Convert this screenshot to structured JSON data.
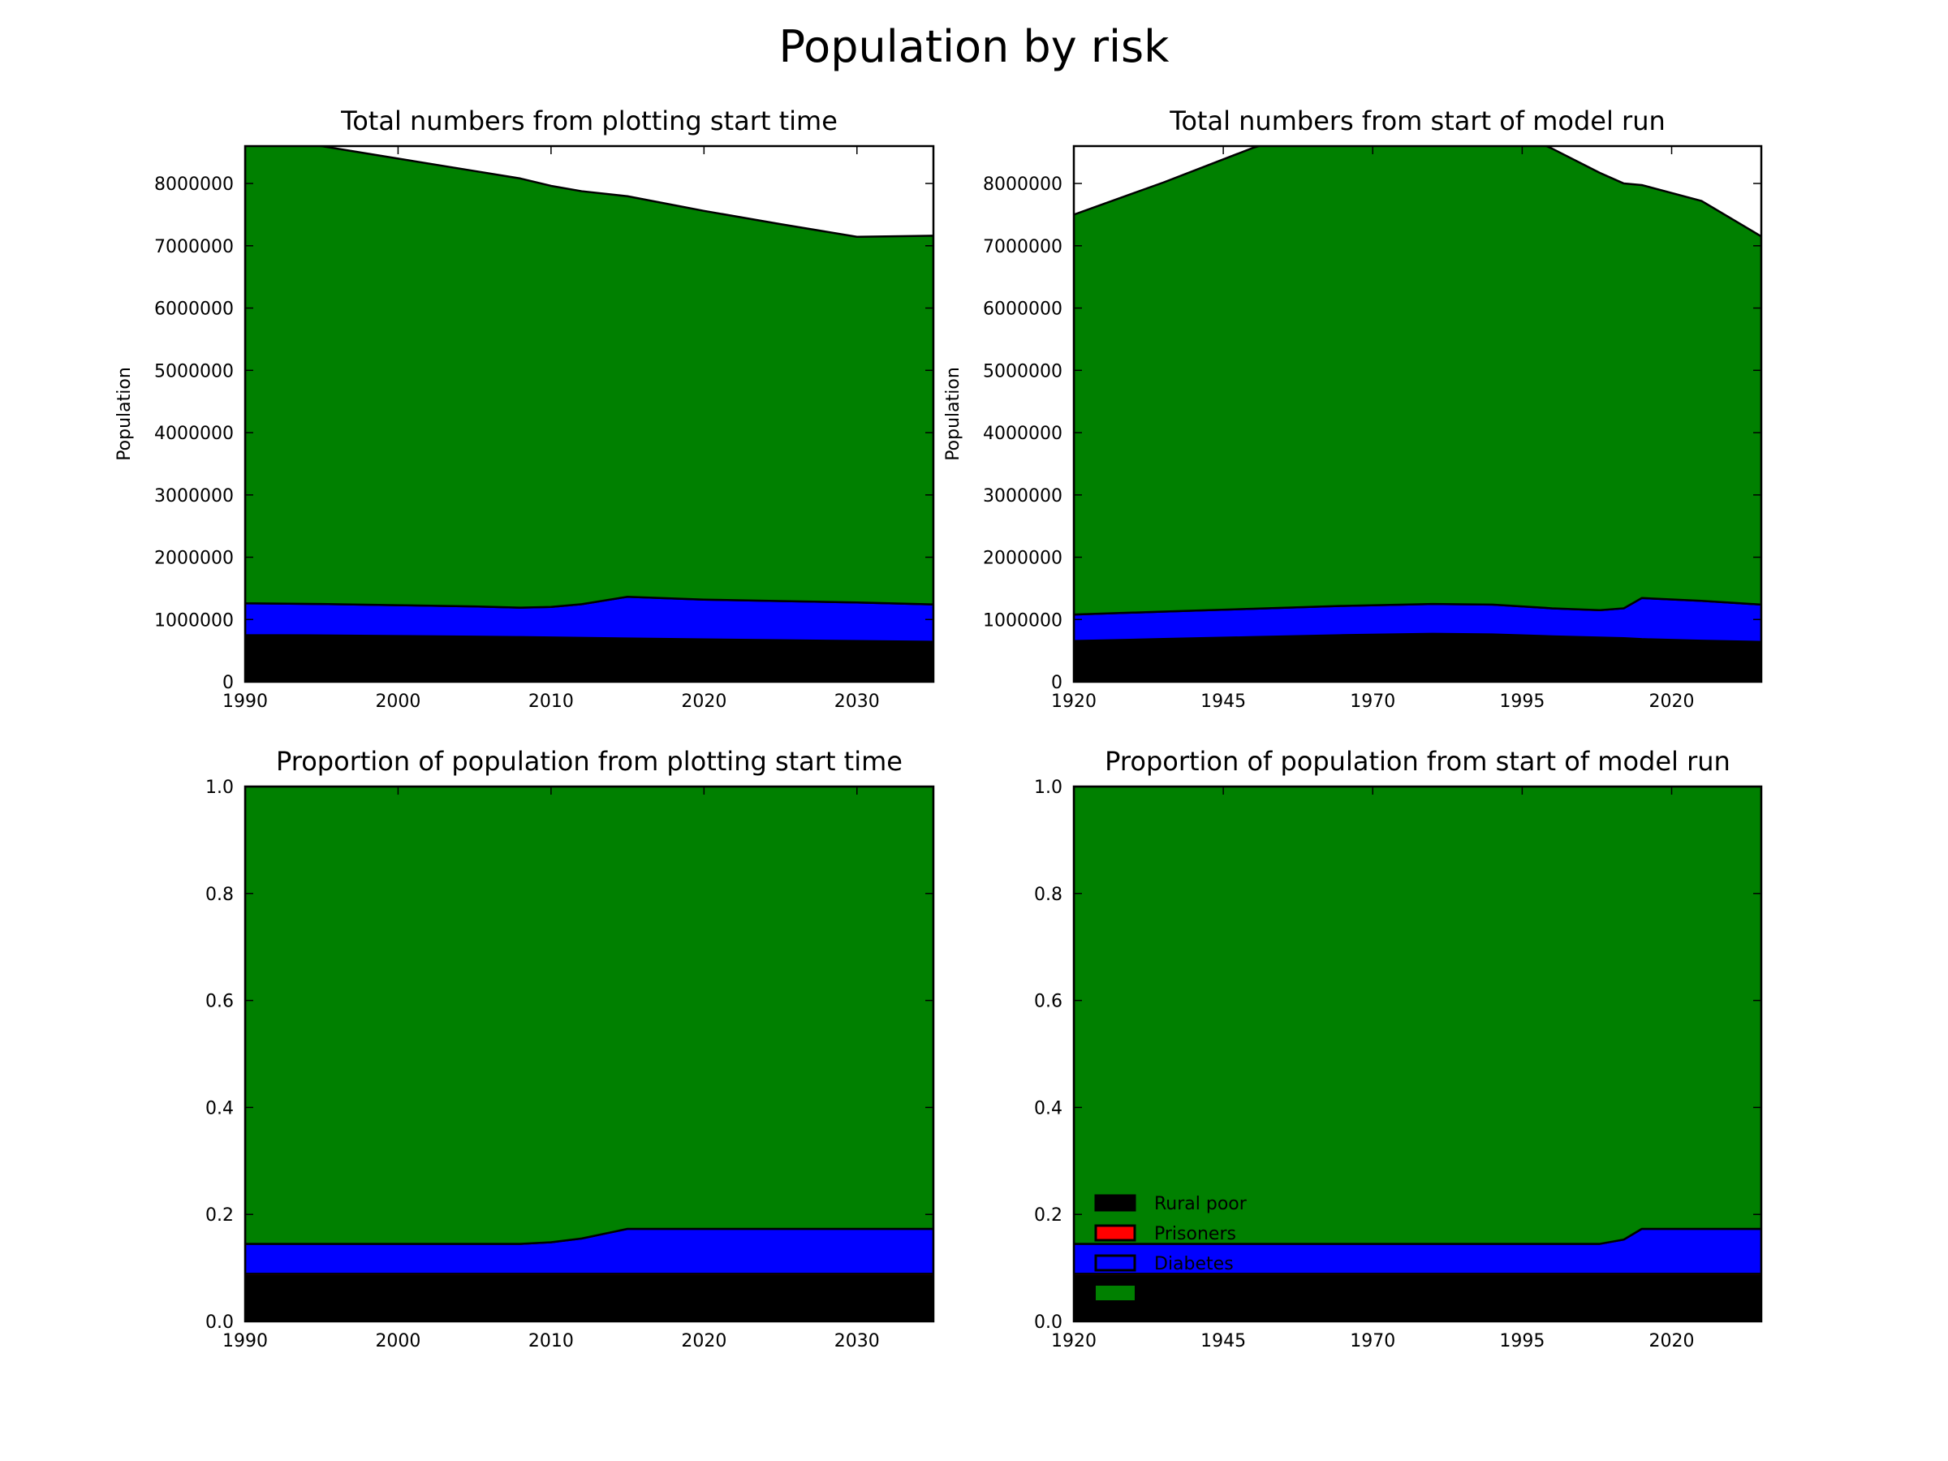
{
  "figure": {
    "title": "Population by risk"
  },
  "colors": {
    "rural_poor": "#000000",
    "prisoners": "#ff0000",
    "diabetes": "#0000ff",
    "remainder": "#008000"
  },
  "legend": {
    "placement": "lower-left",
    "entries": [
      {
        "label": "Rural poor",
        "color": "#000000"
      },
      {
        "label": "Prisoners",
        "color": "#ff0000"
      },
      {
        "label": "Diabetes",
        "color": "#0000ff"
      },
      {
        "label": "",
        "color": "#008000"
      }
    ]
  },
  "chart_data": [
    {
      "type": "area",
      "stacked": true,
      "title": "Total numbers from plotting start time",
      "xlabel": "",
      "ylabel": "Population",
      "xlim": [
        1990,
        2035
      ],
      "ylim": [
        0,
        8600000
      ],
      "xticks": [
        1990,
        2000,
        2010,
        2020,
        2030
      ],
      "yticks": [
        0,
        1000000,
        2000000,
        3000000,
        4000000,
        5000000,
        6000000,
        7000000,
        8000000
      ],
      "x": [
        1990,
        1995,
        2000,
        2005,
        2008,
        2010,
        2012,
        2015,
        2020,
        2025,
        2030,
        2035
      ],
      "series": [
        {
          "name": "Rural poor",
          "color": "#000000",
          "values": [
            720000,
            715000,
            705000,
            695000,
            688000,
            682000,
            676000,
            665000,
            650000,
            637000,
            624000,
            612000
          ]
        },
        {
          "name": "Prisoners",
          "color": "#ff0000",
          "values": [
            30000,
            30000,
            30000,
            30000,
            30000,
            30000,
            30000,
            30000,
            30000,
            30000,
            30000,
            30000
          ]
        },
        {
          "name": "Diabetes",
          "color": "#0000ff",
          "values": [
            510000,
            505000,
            495000,
            485000,
            472000,
            490000,
            540000,
            670000,
            640000,
            630000,
            620000,
            600000
          ]
        },
        {
          "name": "",
          "color": "#008000",
          "values": [
            7440000,
            7350000,
            7170000,
            6990000,
            6890000,
            6760000,
            6630000,
            6430000,
            6240000,
            6050000,
            5870000,
            5920000
          ]
        }
      ]
    },
    {
      "type": "area",
      "stacked": true,
      "title": "Total numbers from start of model run",
      "xlabel": "",
      "ylabel": "Population",
      "xlim": [
        1920,
        2035
      ],
      "ylim": [
        0,
        8600000
      ],
      "xticks": [
        1920,
        1945,
        1970,
        1995,
        2020
      ],
      "yticks": [
        0,
        1000000,
        2000000,
        3000000,
        4000000,
        5000000,
        6000000,
        7000000,
        8000000
      ],
      "x": [
        1920,
        1935,
        1950,
        1965,
        1980,
        1990,
        2000,
        2008,
        2012,
        2015,
        2025,
        2035
      ],
      "series": [
        {
          "name": "Rural poor",
          "color": "#000000",
          "values": [
            630000,
            660000,
            690000,
            720000,
            740000,
            730000,
            700000,
            680000,
            670000,
            655000,
            630000,
            610000
          ]
        },
        {
          "name": "Prisoners",
          "color": "#ff0000",
          "values": [
            25000,
            27000,
            28000,
            29000,
            30000,
            30000,
            30000,
            30000,
            30000,
            30000,
            30000,
            30000
          ]
        },
        {
          "name": "Diabetes",
          "color": "#0000ff",
          "values": [
            425000,
            440000,
            455000,
            470000,
            480000,
            480000,
            450000,
            440000,
            480000,
            660000,
            640000,
            600000
          ]
        },
        {
          "name": "",
          "color": "#008000",
          "values": [
            6420000,
            6890000,
            7400000,
            7780000,
            7750000,
            7760000,
            7380000,
            7020000,
            6820000,
            6630000,
            6420000,
            5910000
          ]
        }
      ]
    },
    {
      "type": "area",
      "stacked": true,
      "title": "Proportion of population from plotting start time",
      "xlabel": "",
      "ylabel": "",
      "xlim": [
        1990,
        2035
      ],
      "ylim": [
        0,
        1.0
      ],
      "xticks": [
        1990,
        2000,
        2010,
        2020,
        2030
      ],
      "yticks": [
        0.0,
        0.2,
        0.4,
        0.6,
        0.8,
        1.0
      ],
      "x": [
        1990,
        1995,
        2000,
        2005,
        2008,
        2010,
        2012,
        2015,
        2020,
        2025,
        2030,
        2035
      ],
      "series": [
        {
          "name": "Rural poor",
          "color": "#000000",
          "values": [
            0.085,
            0.085,
            0.085,
            0.085,
            0.085,
            0.085,
            0.085,
            0.085,
            0.085,
            0.085,
            0.085,
            0.085
          ]
        },
        {
          "name": "Prisoners",
          "color": "#ff0000",
          "values": [
            0.004,
            0.004,
            0.004,
            0.004,
            0.004,
            0.004,
            0.004,
            0.004,
            0.004,
            0.004,
            0.004,
            0.004
          ]
        },
        {
          "name": "Diabetes",
          "color": "#0000ff",
          "values": [
            0.056,
            0.056,
            0.056,
            0.056,
            0.056,
            0.059,
            0.066,
            0.084,
            0.084,
            0.084,
            0.084,
            0.084
          ]
        },
        {
          "name": "",
          "color": "#008000",
          "values": [
            0.855,
            0.855,
            0.855,
            0.855,
            0.855,
            0.852,
            0.845,
            0.827,
            0.827,
            0.827,
            0.827,
            0.827
          ]
        }
      ]
    },
    {
      "type": "area",
      "stacked": true,
      "title": "Proportion of population from start of model run",
      "xlabel": "",
      "ylabel": "",
      "xlim": [
        1920,
        2035
      ],
      "ylim": [
        0,
        1.0
      ],
      "xticks": [
        1920,
        1945,
        1970,
        1995,
        2020
      ],
      "yticks": [
        0.0,
        0.2,
        0.4,
        0.6,
        0.8,
        1.0
      ],
      "x": [
        1920,
        1950,
        1980,
        2000,
        2008,
        2012,
        2015,
        2025,
        2035
      ],
      "series": [
        {
          "name": "Rural poor",
          "color": "#000000",
          "values": [
            0.085,
            0.085,
            0.085,
            0.085,
            0.085,
            0.085,
            0.085,
            0.085,
            0.085
          ]
        },
        {
          "name": "Prisoners",
          "color": "#ff0000",
          "values": [
            0.004,
            0.004,
            0.004,
            0.004,
            0.004,
            0.004,
            0.004,
            0.004,
            0.004
          ]
        },
        {
          "name": "Diabetes",
          "color": "#0000ff",
          "values": [
            0.056,
            0.056,
            0.056,
            0.056,
            0.056,
            0.064,
            0.084,
            0.084,
            0.084
          ]
        },
        {
          "name": "",
          "color": "#008000",
          "values": [
            0.855,
            0.855,
            0.855,
            0.855,
            0.855,
            0.847,
            0.827,
            0.827,
            0.827
          ]
        }
      ]
    }
  ]
}
